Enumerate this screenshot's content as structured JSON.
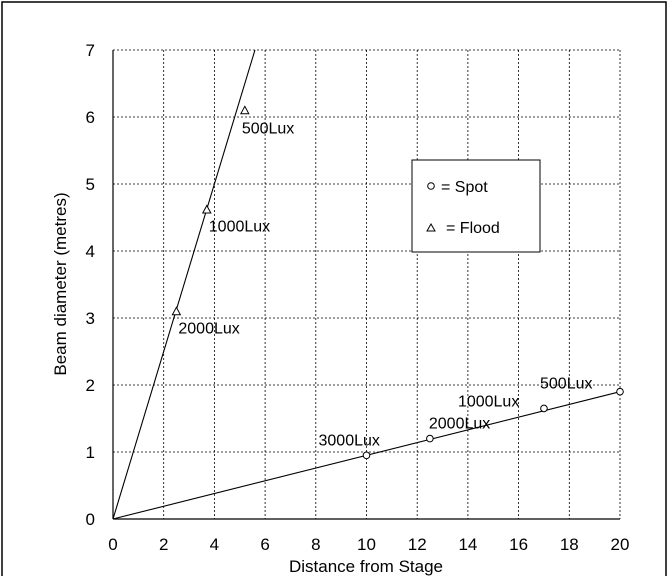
{
  "chart_data": {
    "type": "line",
    "xlabel": "Distance from Stage",
    "ylabel": "Beam diameter (metres)",
    "xlim": [
      0,
      20
    ],
    "ylim": [
      0,
      7
    ],
    "xticks": [
      "0",
      "2",
      "4",
      "6",
      "8",
      "10",
      "12",
      "14",
      "16",
      "18",
      "20"
    ],
    "yticks": [
      "0",
      "1",
      "2",
      "3",
      "4",
      "5",
      "6",
      "7"
    ],
    "grid": true,
    "legend_position": "center-right",
    "series": [
      {
        "legend_label": "= Flood",
        "marker": "triangle",
        "line": [
          [
            0,
            0
          ],
          [
            5.6,
            7
          ]
        ],
        "points": [
          {
            "x": 2.5,
            "y": 3.1,
            "label": "2000Lux"
          },
          {
            "x": 3.7,
            "y": 4.62,
            "label": "1000Lux"
          },
          {
            "x": 5.2,
            "y": 6.1,
            "label": "500Lux"
          }
        ]
      },
      {
        "legend_label": "= Spot",
        "marker": "circle",
        "line": [
          [
            0,
            0
          ],
          [
            20,
            1.9
          ]
        ],
        "points": [
          {
            "x": 10,
            "y": 0.95,
            "label": "3000Lux"
          },
          {
            "x": 12.5,
            "y": 1.2,
            "label": "2000Lux"
          },
          {
            "x": 17,
            "y": 1.65,
            "label": "1000Lux"
          },
          {
            "x": 20,
            "y": 1.9,
            "label": "500Lux"
          }
        ]
      }
    ]
  }
}
